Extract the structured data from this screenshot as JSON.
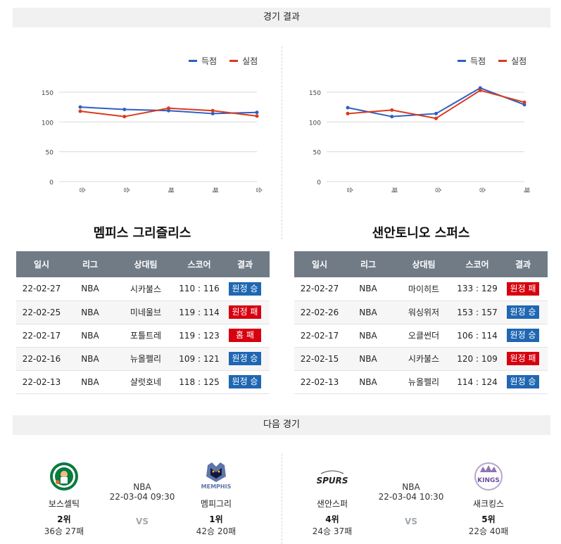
{
  "sections": {
    "results_title": "경기 결과",
    "next_title": "다음 경기"
  },
  "legend": {
    "scored": "득점",
    "conceded": "실점",
    "scored_color": "#2f5fc4",
    "conceded_color": "#d93a1b"
  },
  "chart_data": [
    {
      "type": "line",
      "categories": [
        "승",
        "승",
        "패",
        "패",
        "승"
      ],
      "series": [
        {
          "name": "득점",
          "values": [
            125,
            121,
            119,
            114,
            116
          ]
        },
        {
          "name": "실점",
          "values": [
            118,
            109,
            123,
            119,
            110
          ]
        }
      ],
      "yticks": [
        "0",
        "50",
        "100",
        "150"
      ],
      "ylim": [
        0,
        170
      ],
      "grid": true,
      "legend_position": "top-right"
    },
    {
      "type": "line",
      "categories": [
        "승",
        "패",
        "승",
        "승",
        "패"
      ],
      "series": [
        {
          "name": "득점",
          "values": [
            124,
            109,
            114,
            157,
            129
          ]
        },
        {
          "name": "실점",
          "values": [
            114,
            120,
            106,
            153,
            133
          ]
        }
      ],
      "yticks": [
        "0",
        "50",
        "100",
        "150"
      ],
      "ylim": [
        0,
        170
      ],
      "grid": true,
      "legend_position": "top-right"
    }
  ],
  "table_headers": [
    "일시",
    "리그",
    "상대팀",
    "스코어",
    "결과"
  ],
  "teams": [
    {
      "name": "멤피스 그리즐리스",
      "rows": [
        {
          "date": "22-02-27",
          "league": "NBA",
          "opponent": "시카불스",
          "score": "110 : 116",
          "result": "원정 승",
          "win": true
        },
        {
          "date": "22-02-25",
          "league": "NBA",
          "opponent": "미네울브",
          "score": "119 : 114",
          "result": "원정 패",
          "win": false
        },
        {
          "date": "22-02-17",
          "league": "NBA",
          "opponent": "포틀트레",
          "score": "119 : 123",
          "result": "홈 패",
          "win": false
        },
        {
          "date": "22-02-16",
          "league": "NBA",
          "opponent": "뉴올펠리",
          "score": "109 : 121",
          "result": "원정 승",
          "win": true
        },
        {
          "date": "22-02-13",
          "league": "NBA",
          "opponent": "샬럿호네",
          "score": "118 : 125",
          "result": "원정 승",
          "win": true
        }
      ]
    },
    {
      "name": "샌안토니오 스퍼스",
      "rows": [
        {
          "date": "22-02-27",
          "league": "NBA",
          "opponent": "마이히트",
          "score": "133 : 129",
          "result": "원정 패",
          "win": false
        },
        {
          "date": "22-02-26",
          "league": "NBA",
          "opponent": "워싱위저",
          "score": "153 : 157",
          "result": "원정 승",
          "win": true
        },
        {
          "date": "22-02-17",
          "league": "NBA",
          "opponent": "오클썬더",
          "score": "106 : 114",
          "result": "원정 승",
          "win": true
        },
        {
          "date": "22-02-15",
          "league": "NBA",
          "opponent": "시카불스",
          "score": "120 : 109",
          "result": "원정 패",
          "win": false
        },
        {
          "date": "22-02-13",
          "league": "NBA",
          "opponent": "뉴올펠리",
          "score": "114 : 124",
          "result": "원정 승",
          "win": true
        }
      ]
    }
  ],
  "next_games": [
    {
      "league": "NBA",
      "datetime": "22-03-04 09:30",
      "vs": "VS",
      "home": {
        "name": "보스셀틱",
        "rank": "2위",
        "record": "36승 27패",
        "logo": "celtics-logo-icon"
      },
      "away": {
        "name": "멤피그리",
        "rank": "1위",
        "record": "42승 20패",
        "logo": "grizzlies-logo-icon",
        "logo_text": "MEMPHIS"
      }
    },
    {
      "league": "NBA",
      "datetime": "22-03-04 10:30",
      "vs": "VS",
      "home": {
        "name": "샌안스퍼",
        "rank": "4위",
        "record": "24승 37패",
        "logo": "spurs-logo-icon",
        "logo_text": "SPURS"
      },
      "away": {
        "name": "새크킹스",
        "rank": "5위",
        "record": "22승 40패",
        "logo": "kings-logo-icon",
        "logo_text": "KINGS"
      }
    }
  ]
}
